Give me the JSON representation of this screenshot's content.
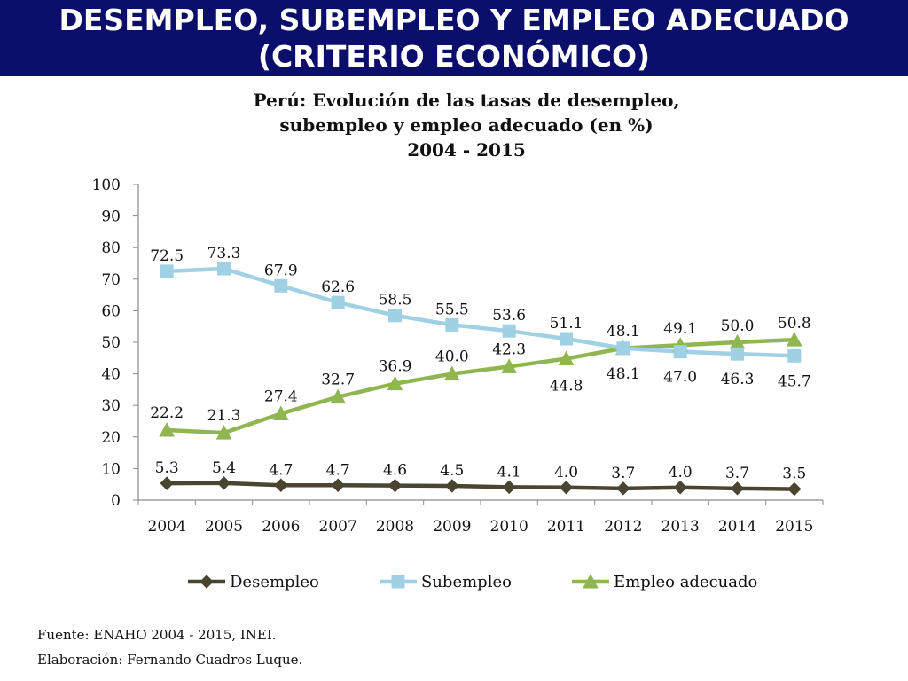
{
  "banner": {
    "line1": "DESEMPLEO, SUBEMPLEO Y EMPLEO ADECUADO",
    "line2": "(CRITERIO ECONÓMICO)"
  },
  "footer": {
    "source": "Fuente: ENAHO 2004 - 2015, INEI.",
    "author": "Elaboración: Fernando Cuadros Luque."
  },
  "chart_data": {
    "type": "line",
    "title": [
      "Perú: Evolución de las tasas de desempleo,",
      "subempleo y empleo adecuado (en %)",
      "2004 - 2015"
    ],
    "xlabel": "",
    "ylabel": "",
    "ylim": [
      0,
      100
    ],
    "yticks": [
      0,
      10,
      20,
      30,
      40,
      50,
      60,
      70,
      80,
      90,
      100
    ],
    "grid": false,
    "legend_position": "bottom",
    "categories": [
      "2004",
      "2005",
      "2006",
      "2007",
      "2008",
      "2009",
      "2010",
      "2011",
      "2012",
      "2013",
      "2014",
      "2015"
    ],
    "series": [
      {
        "name": "Desempleo",
        "color": "#4a4530",
        "marker": "diamond",
        "values": [
          5.3,
          5.4,
          4.7,
          4.7,
          4.6,
          4.5,
          4.1,
          4.0,
          3.7,
          4.0,
          3.7,
          3.5
        ],
        "labels": [
          "5.3",
          "5.4",
          "4.7",
          "4.7",
          "4.6",
          "4.5",
          "4.1",
          "4.0",
          "3.7",
          "4.0",
          "3.7",
          "3.5"
        ]
      },
      {
        "name": "Subempleo",
        "color": "#9fd0e4",
        "marker": "square",
        "values": [
          72.5,
          73.3,
          67.9,
          62.6,
          58.5,
          55.5,
          53.6,
          51.1,
          48.1,
          47.0,
          46.3,
          45.7
        ],
        "labels": [
          "72.5",
          "73.3",
          "67.9",
          "62.6",
          "58.5",
          "55.5",
          "53.6",
          "51.1",
          "48.1",
          "47.0",
          "46.3",
          "45.7"
        ]
      },
      {
        "name": "Empleo adecuado",
        "color": "#8fb651",
        "marker": "triangle",
        "values": [
          22.2,
          21.3,
          27.4,
          32.7,
          36.9,
          40.0,
          42.3,
          44.8,
          48.1,
          49.1,
          50.0,
          50.8
        ],
        "labels": [
          "22.2",
          "21.3",
          "27.4",
          "32.7",
          "36.9",
          "40.0",
          "42.3",
          "44.8",
          "48.1",
          "49.1",
          "50.0",
          "50.8"
        ]
      }
    ]
  }
}
